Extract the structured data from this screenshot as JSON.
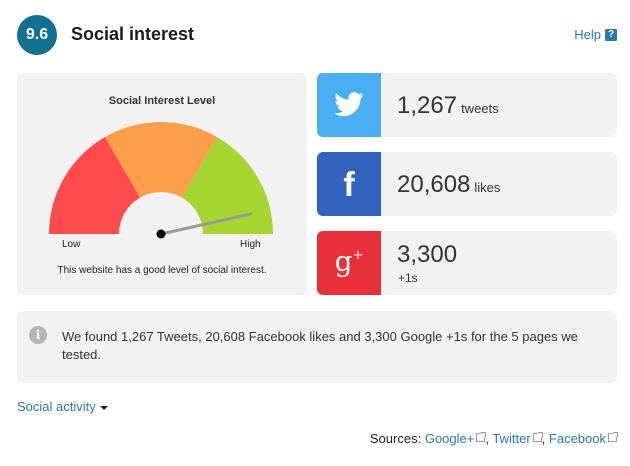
{
  "header": {
    "score": "9.6",
    "title": "Social interest",
    "help_label": "Help",
    "help_glyph": "?"
  },
  "gauge": {
    "title": "Social Interest Level",
    "low_label": "Low",
    "high_label": "High",
    "caption": "This website has a good level of social interest.",
    "level_fraction": 0.93,
    "colors": {
      "low": "#ff4b4b",
      "mid": "#fe9d4a",
      "high": "#a5d62f"
    }
  },
  "stats": [
    {
      "network": "Twitter",
      "icon": "twitter-bird-icon",
      "color": "#4aaef2",
      "value": "1,267",
      "unit": "tweets"
    },
    {
      "network": "Facebook",
      "icon": "facebook-f-icon",
      "color": "#3264be",
      "value": "20,608",
      "unit": "likes"
    },
    {
      "network": "Google+",
      "icon": "google-plus-icon",
      "color": "#e8303a",
      "value": "3,300",
      "unit": "+1s"
    }
  ],
  "info": {
    "icon": "info-icon",
    "glyph": "i",
    "text": "We found 1,267 Tweets, 20,608 Facebook likes and 3,300 Google +1s for the 5 pages we tested."
  },
  "social_activity_label": "Social activity",
  "sources": {
    "label": "Sources:",
    "links": [
      "Google+",
      "Twitter",
      "Facebook"
    ],
    "separator": ","
  }
}
